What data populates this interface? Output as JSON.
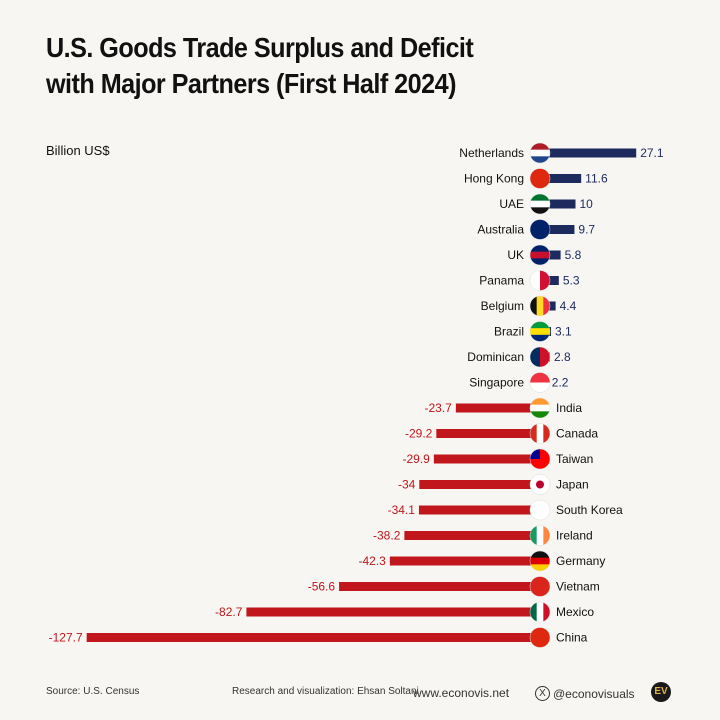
{
  "chart_data": {
    "type": "bar",
    "orientation": "horizontal",
    "title": "U.S. Goods Trade Surplus and Deficit with Major Partners (First Half 2024)",
    "unit_label": "Billion US$",
    "xlim": [
      -127.7,
      27.1
    ],
    "grid": false,
    "colors": {
      "surplus": "#1c2a5e",
      "deficit": "#c0161c"
    },
    "categories": [
      "Netherlands",
      "Hong Kong",
      "UAE",
      "Australia",
      "UK",
      "Panama",
      "Belgium",
      "Brazil",
      "Dominican",
      "Singapore",
      "India",
      "Canada",
      "Taiwan",
      "Japan",
      "South Korea",
      "Ireland",
      "Germany",
      "Vietnam",
      "Mexico",
      "China"
    ],
    "values": [
      27.1,
      11.6,
      10,
      9.7,
      5.8,
      5.3,
      4.4,
      3.1,
      2.8,
      2.2,
      -23.7,
      -29.2,
      -29.9,
      -34,
      -34.1,
      -38.2,
      -42.3,
      -56.6,
      -82.7,
      -127.7
    ],
    "value_labels": [
      "27.1",
      "11.6",
      "10",
      "9.7",
      "5.8",
      "5.3",
      "4.4",
      "3.1",
      "2.8",
      "2.2",
      "-23.7",
      "-29.2",
      "-29.9",
      "-34",
      "-34.1",
      "-38.2",
      "-42.3",
      "-56.6",
      "-82.7",
      "-127.7"
    ],
    "flags": [
      {
        "dir": "h",
        "colors": [
          "#ae1c28",
          "#ffffff",
          "#21468b"
        ]
      },
      {
        "dir": "h",
        "colors": [
          "#de2910"
        ]
      },
      {
        "dir": "h",
        "colors": [
          "#00732f",
          "#ffffff",
          "#111111"
        ]
      },
      {
        "dir": "h",
        "colors": [
          "#012169"
        ]
      },
      {
        "dir": "h",
        "colors": [
          "#012169",
          "#c8102e",
          "#012169"
        ]
      },
      {
        "dir": "v",
        "colors": [
          "#ffffff",
          "#d21034"
        ]
      },
      {
        "dir": "v",
        "colors": [
          "#111111",
          "#fdda24",
          "#ef3340"
        ]
      },
      {
        "dir": "h",
        "colors": [
          "#009c3b",
          "#ffdf00",
          "#002776"
        ]
      },
      {
        "dir": "v",
        "colors": [
          "#002d62",
          "#ce1126"
        ]
      },
      {
        "dir": "h",
        "colors": [
          "#ef3340",
          "#ffffff"
        ]
      },
      {
        "dir": "h",
        "colors": [
          "#ff9933",
          "#ffffff",
          "#138808"
        ]
      },
      {
        "dir": "v",
        "colors": [
          "#d52b1e",
          "#ffffff",
          "#d52b1e"
        ]
      },
      {
        "dir": "h",
        "colors": [
          "#fe0000",
          "#fe0000"
        ]
      },
      {
        "dir": "h",
        "colors": [
          "#ffffff"
        ]
      },
      {
        "dir": "h",
        "colors": [
          "#ffffff"
        ]
      },
      {
        "dir": "v",
        "colors": [
          "#169b62",
          "#ffffff",
          "#ff883e"
        ]
      },
      {
        "dir": "h",
        "colors": [
          "#111111",
          "#dd0000",
          "#ffce00"
        ]
      },
      {
        "dir": "h",
        "colors": [
          "#da251d"
        ]
      },
      {
        "dir": "v",
        "colors": [
          "#006847",
          "#ffffff",
          "#ce1126"
        ]
      },
      {
        "dir": "h",
        "colors": [
          "#de2910"
        ]
      }
    ]
  },
  "footer": {
    "source": "Source: U.S. Census",
    "credit": "Research and visualization: Ehsan Soltani",
    "website": "www.econovis.net",
    "social": "@econovisuals",
    "logo": "EV"
  }
}
